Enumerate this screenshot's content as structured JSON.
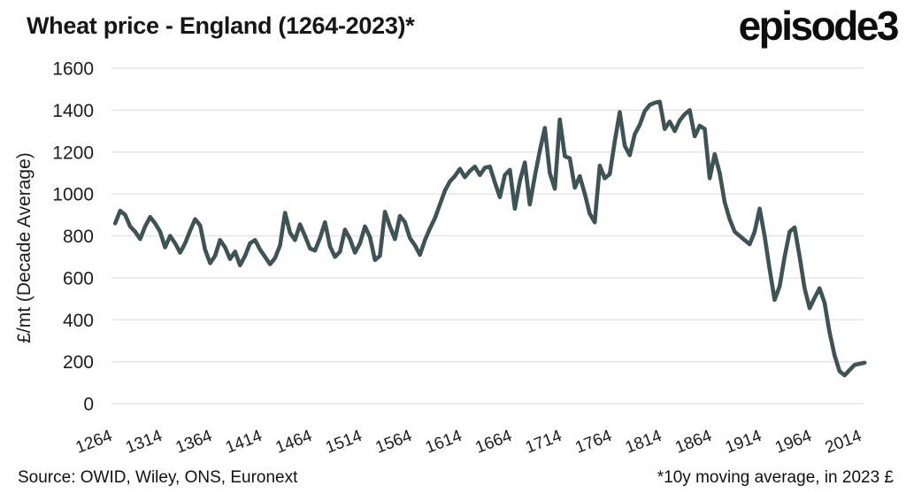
{
  "header": {
    "title": "Wheat price - England (1264-2023)*",
    "logo": "episode3"
  },
  "footer": {
    "source": "Source: OWID, Wiley, ONS, Euronext",
    "note": "*10y moving average, in 2023 £"
  },
  "chart_data": {
    "type": "line",
    "title": "Wheat price - England (1264-2023)*",
    "xlabel": "",
    "ylabel": "£/mt (Decade Average)",
    "ylim": [
      0,
      1600
    ],
    "xlim": [
      1264,
      2023
    ],
    "yticks": [
      0,
      200,
      400,
      600,
      800,
      1000,
      1200,
      1400,
      1600
    ],
    "xticks": [
      1264,
      1314,
      1364,
      1414,
      1464,
      1514,
      1564,
      1614,
      1664,
      1714,
      1764,
      1814,
      1864,
      1914,
      1964,
      2014
    ],
    "grid": "horizontal",
    "legend_position": "none",
    "line_color": "#3e5355",
    "grid_color": "#e0e0e0",
    "series": [
      {
        "name": "Wheat price, 10y moving average (2023 £/mt)",
        "x": [
          1273,
          1278,
          1283,
          1288,
          1293,
          1298,
          1303,
          1308,
          1313,
          1318,
          1323,
          1328,
          1333,
          1338,
          1343,
          1348,
          1353,
          1358,
          1363,
          1368,
          1373,
          1378,
          1383,
          1388,
          1393,
          1398,
          1403,
          1408,
          1413,
          1418,
          1423,
          1428,
          1433,
          1438,
          1443,
          1448,
          1453,
          1458,
          1463,
          1468,
          1473,
          1478,
          1483,
          1488,
          1493,
          1498,
          1503,
          1508,
          1513,
          1518,
          1523,
          1528,
          1533,
          1538,
          1543,
          1548,
          1553,
          1558,
          1563,
          1568,
          1573,
          1578,
          1583,
          1588,
          1593,
          1598,
          1603,
          1608,
          1613,
          1618,
          1623,
          1628,
          1633,
          1638,
          1643,
          1648,
          1653,
          1658,
          1663,
          1668,
          1673,
          1678,
          1683,
          1688,
          1693,
          1698,
          1703,
          1708,
          1713,
          1718,
          1723,
          1728,
          1733,
          1738,
          1743,
          1748,
          1753,
          1758,
          1763,
          1768,
          1773,
          1778,
          1783,
          1788,
          1793,
          1798,
          1803,
          1808,
          1813,
          1818,
          1823,
          1828,
          1833,
          1838,
          1843,
          1848,
          1853,
          1858,
          1863,
          1868,
          1873,
          1878,
          1883,
          1888,
          1893,
          1898,
          1903,
          1908,
          1913,
          1918,
          1923,
          1928,
          1933,
          1938,
          1943,
          1948,
          1953,
          1958,
          1963,
          1968,
          1973,
          1978,
          1983,
          1988,
          1993,
          1998,
          2003,
          2008,
          2013,
          2018,
          2023
        ],
        "y": [
          860,
          920,
          900,
          845,
          820,
          785,
          845,
          890,
          860,
          820,
          745,
          800,
          765,
          720,
          765,
          825,
          880,
          850,
          735,
          670,
          705,
          780,
          745,
          690,
          725,
          660,
          705,
          765,
          780,
          735,
          700,
          665,
          695,
          755,
          910,
          815,
          780,
          855,
          800,
          740,
          730,
          790,
          865,
          750,
          700,
          725,
          830,
          785,
          720,
          765,
          845,
          795,
          685,
          705,
          915,
          845,
          785,
          895,
          865,
          790,
          755,
          710,
          780,
          835,
          885,
          950,
          1015,
          1060,
          1085,
          1120,
          1080,
          1110,
          1130,
          1090,
          1125,
          1130,
          1055,
          985,
          1090,
          1115,
          930,
          1060,
          1150,
          950,
          1085,
          1205,
          1315,
          1100,
          1025,
          1355,
          1180,
          1170,
          1030,
          1085,
          1000,
          905,
          865,
          1135,
          1075,
          1095,
          1250,
          1390,
          1230,
          1185,
          1285,
          1330,
          1395,
          1425,
          1435,
          1440,
          1310,
          1345,
          1300,
          1350,
          1380,
          1400,
          1275,
          1325,
          1310,
          1075,
          1190,
          1100,
          960,
          880,
          820,
          800,
          780,
          760,
          820,
          930,
          800,
          640,
          495,
          560,
          700,
          820,
          840,
          700,
          550,
          455,
          505,
          550,
          480,
          340,
          230,
          155,
          135,
          160,
          185,
          190,
          195
        ]
      }
    ]
  }
}
